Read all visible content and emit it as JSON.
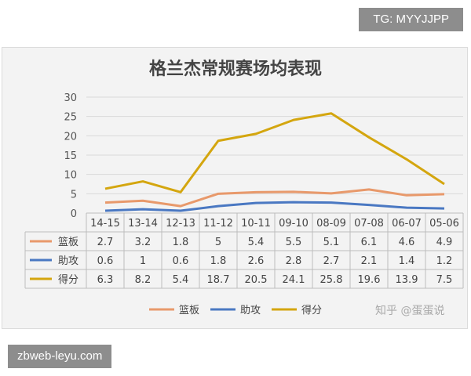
{
  "badges": {
    "top": "TG: MYYJJPP",
    "bottom": "zbweb-leyu.com"
  },
  "watermark": "知乎 @蛋蛋说",
  "chart_data": {
    "type": "line",
    "title": "格兰杰常规赛场均表现",
    "categories": [
      "14-15",
      "13-14",
      "12-13",
      "11-12",
      "10-11",
      "09-10",
      "08-09",
      "07-08",
      "06-07",
      "05-06"
    ],
    "ylim": [
      0,
      30
    ],
    "yticks": [
      0,
      5,
      10,
      15,
      20,
      25,
      30
    ],
    "grid": true,
    "legend_position": "bottom",
    "data_table": true,
    "series": [
      {
        "name": "篮板",
        "color": "#e8996b",
        "values": [
          2.7,
          3.2,
          1.8,
          5,
          5.4,
          5.5,
          5.1,
          6.1,
          4.6,
          4.9
        ],
        "labels": [
          "2.7",
          "3.2",
          "1.8",
          "5",
          "5.4",
          "5.5",
          "5.1",
          "6.1",
          "4.6",
          "4.9"
        ]
      },
      {
        "name": "助攻",
        "color": "#4a78c2",
        "values": [
          0.6,
          1,
          0.6,
          1.8,
          2.6,
          2.8,
          2.7,
          2.1,
          1.4,
          1.2
        ],
        "labels": [
          "0.6",
          "1",
          "0.6",
          "1.8",
          "2.6",
          "2.8",
          "2.7",
          "2.1",
          "1.4",
          "1.2"
        ]
      },
      {
        "name": "得分",
        "color": "#d4a60f",
        "values": [
          6.3,
          8.2,
          5.4,
          18.7,
          20.5,
          24.1,
          25.8,
          19.6,
          13.9,
          7.5
        ],
        "labels": [
          "6.3",
          "8.2",
          "5.4",
          "18.7",
          "20.5",
          "24.1",
          "25.8",
          "19.6",
          "13.9",
          "7.5"
        ]
      }
    ]
  }
}
